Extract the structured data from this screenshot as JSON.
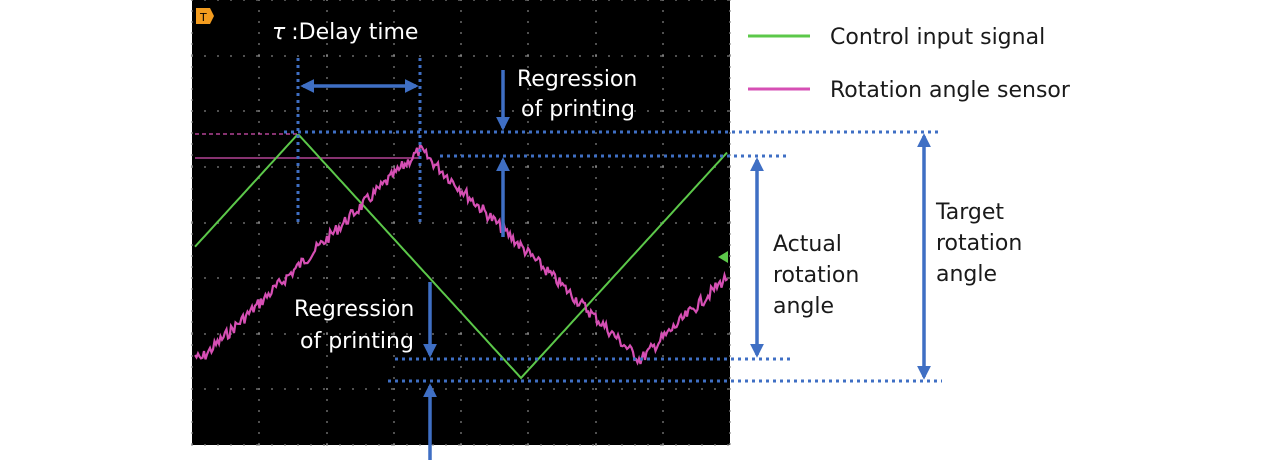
{
  "trigger_marker": "T",
  "legend": {
    "items": [
      {
        "label": "Control input signal",
        "color": "#5cc84a"
      },
      {
        "label": "Rotation angle sensor",
        "color": "#d64fb4"
      }
    ]
  },
  "annotations": {
    "tau_symbol": "τ",
    "delay_time": ":Delay time",
    "regression_top": [
      "Regression",
      "of printing"
    ],
    "regression_bottom": [
      "Regression",
      "of printing"
    ],
    "actual_angle": [
      "Actual",
      "rotation",
      "angle"
    ],
    "target_angle": [
      "Target",
      "rotation",
      "angle"
    ]
  },
  "colors": {
    "screen_bg": "#000000",
    "grid": "#8a8a8a",
    "guide_lines": "#3f6fc4",
    "control_signal": "#5cc84a",
    "sensor_signal": "#d64fb4",
    "trigger": "#f39c1f"
  }
}
